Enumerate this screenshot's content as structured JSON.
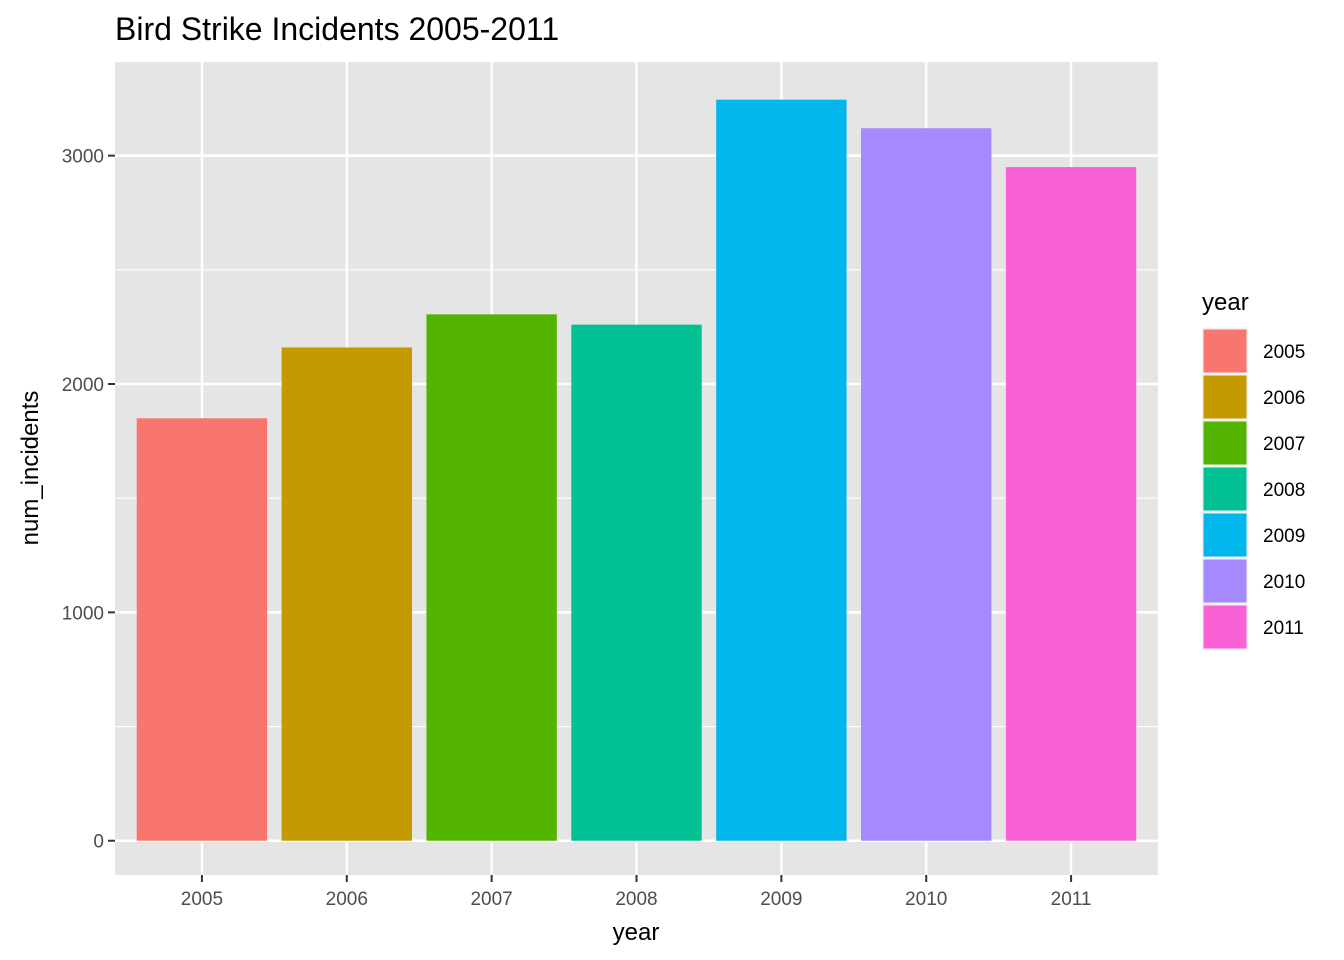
{
  "chart_data": {
    "type": "bar",
    "title": "Bird Strike Incidents 2005-2011",
    "xlabel": "year",
    "ylabel": "num_incidents",
    "categories": [
      "2005",
      "2006",
      "2007",
      "2008",
      "2009",
      "2010",
      "2011"
    ],
    "values": [
      1850,
      2160,
      2305,
      2260,
      3245,
      3120,
      2950
    ],
    "colors": [
      "#F8766D",
      "#C49A00",
      "#53B400",
      "#00C094",
      "#00B6EB",
      "#A58AFF",
      "#FB61D7"
    ],
    "yticks": [
      0,
      1000,
      2000,
      3000
    ],
    "ytick_labels": [
      "0",
      "1000",
      "2000",
      "3000"
    ],
    "ylim": [
      -150,
      3410
    ],
    "grid": true,
    "panel_background": "#E5E5E5",
    "legend": {
      "title": "year",
      "position": "right",
      "entries": [
        "2005",
        "2006",
        "2007",
        "2008",
        "2009",
        "2010",
        "2011"
      ]
    }
  }
}
